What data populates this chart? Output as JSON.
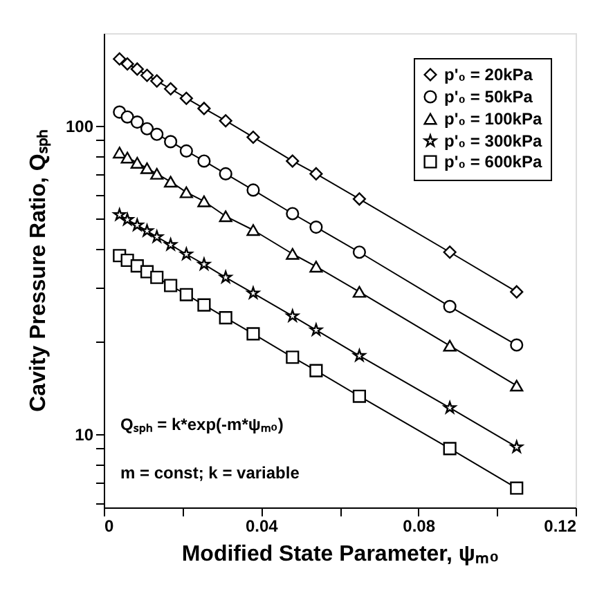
{
  "chart_data": {
    "type": "line",
    "xlabel": "Modified State Parameter, ψₘ₀",
    "ylabel": "Cavity Pressure Ratio, Qₛₚₕ",
    "x": [
      0.004,
      0.006,
      0.0085,
      0.011,
      0.0135,
      0.017,
      0.021,
      0.0255,
      0.031,
      0.038,
      0.048,
      0.054,
      0.065,
      0.088,
      0.105
    ],
    "series": [
      {
        "name": "p'₀ = 20kPa",
        "color": "#000000",
        "marker": "diamond",
        "values": [
          165,
          159,
          153,
          146,
          140,
          132,
          123,
          114,
          104,
          92,
          77,
          70,
          58,
          39,
          29
        ]
      },
      {
        "name": "p'₀ = 50kPa",
        "color": "#000000",
        "marker": "circle",
        "values": [
          111,
          107,
          103,
          98,
          94,
          89,
          83,
          77,
          70,
          62,
          52,
          47,
          39,
          26,
          19.5
        ]
      },
      {
        "name": "p'₀ = 100kPa",
        "color": "#000000",
        "marker": "triangle",
        "values": [
          82,
          79,
          76,
          73,
          70,
          66,
          61,
          57,
          51,
          46,
          38.5,
          35,
          29,
          19.4,
          14.4
        ]
      },
      {
        "name": "p'₀ = 300kPa",
        "color": "#000000",
        "marker": "star",
        "values": [
          51.5,
          49.7,
          47.7,
          45.7,
          43.7,
          41.2,
          38.4,
          35.6,
          32.3,
          28.7,
          24.2,
          21.8,
          18,
          12.2,
          9.1
        ]
      },
      {
        "name": "p'₀ = 600kPa",
        "color": "#000000",
        "marker": "square",
        "values": [
          38,
          36.7,
          35.2,
          33.7,
          32.3,
          30.4,
          28.4,
          26.3,
          23.9,
          21.2,
          17.8,
          16.1,
          13.3,
          9,
          6.7
        ]
      }
    ],
    "xlim": [
      0,
      0.12
    ],
    "xticks": [
      0,
      {
        "value": 0.02,
        "label": null
      },
      0.04,
      {
        "value": 0.06,
        "label": null
      },
      0.08,
      {
        "value": 0.1,
        "label": null
      },
      0.12
    ],
    "ylim": [
      5.8,
      200
    ],
    "yticks": [
      {
        "value": 6,
        "label": null
      },
      {
        "value": 7,
        "label": null
      },
      {
        "value": 8,
        "label": null
      },
      {
        "value": 9,
        "label": null
      },
      10,
      {
        "value": 20,
        "label": null
      },
      {
        "value": 30,
        "label": null
      },
      {
        "value": 40,
        "label": null
      },
      {
        "value": 50,
        "label": null
      },
      {
        "value": 60,
        "label": null
      },
      {
        "value": 70,
        "label": null
      },
      {
        "value": 80,
        "label": null
      },
      {
        "value": 90,
        "label": null
      },
      100
    ],
    "log": "y",
    "grid": false,
    "legend": "top right",
    "line_style": "solid",
    "annotations": [
      "Qₛₚₕ = k*exp(-m*ψₘ₀)",
      "m = const;   k = variable"
    ]
  }
}
